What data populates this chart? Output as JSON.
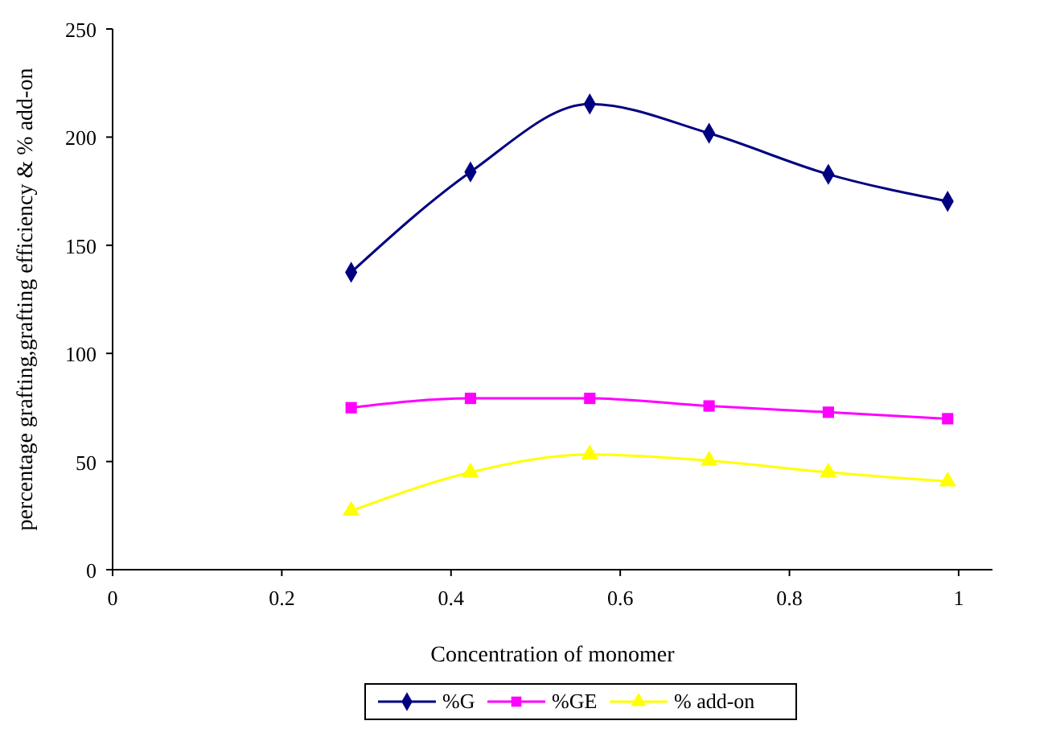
{
  "chart_data": {
    "type": "line",
    "xlabel": "Concentration of monomer",
    "ylabel": "percentage grafting,grafting efficiency & % add-on",
    "x": [
      0.282,
      0.423,
      0.564,
      0.705,
      0.846,
      0.987
    ],
    "series": [
      {
        "name": "%G",
        "color": "#000080",
        "marker": "diamond",
        "values": [
          137.5,
          183.9,
          215.3,
          201.8,
          182.8,
          170.3
        ]
      },
      {
        "name": "%GE",
        "color": "#ff00ff",
        "marker": "square",
        "values": [
          74.9,
          79.2,
          79.2,
          75.7,
          72.8,
          69.8
        ]
      },
      {
        "name": "% add-on",
        "color": "#ffff00",
        "marker": "triangle",
        "values": [
          27.2,
          45,
          53.3,
          50.4,
          45,
          40.8
        ]
      }
    ],
    "xlim": [
      0,
      1.04
    ],
    "xticks": [
      0,
      0.2,
      0.4,
      0.6,
      0.8,
      1
    ],
    "ylim": [
      0,
      250
    ],
    "yticks": [
      0,
      50,
      100,
      150,
      200,
      250
    ],
    "grid": false,
    "legend": "bottom",
    "line_style": "solid"
  }
}
